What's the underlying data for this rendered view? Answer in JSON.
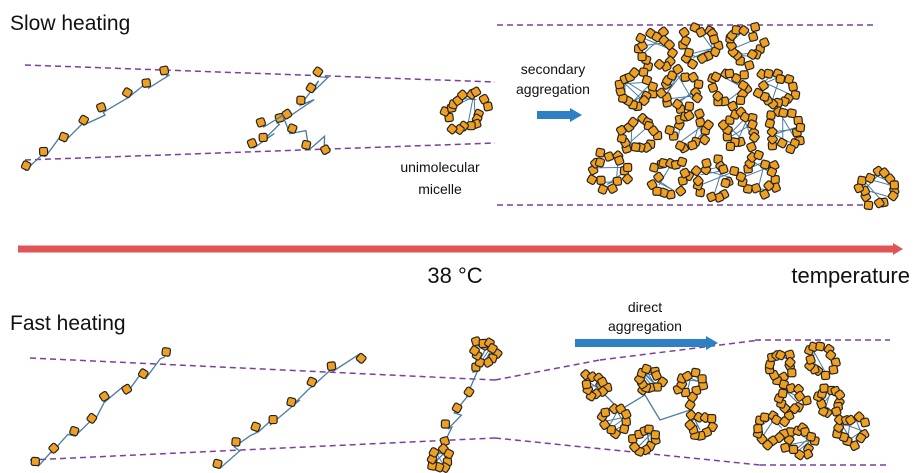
{
  "slow_heating": {
    "title": "Slow heating",
    "secondary_aggregation": [
      "secondary",
      "aggregation"
    ],
    "unimolecular_micelle": [
      "unimolecular",
      "micelle"
    ]
  },
  "axis": {
    "temperature_mark": "38 °C",
    "label": "temperature"
  },
  "fast_heating": {
    "title": "Fast heating",
    "direct_aggregation": [
      "direct",
      "aggregation"
    ]
  }
}
